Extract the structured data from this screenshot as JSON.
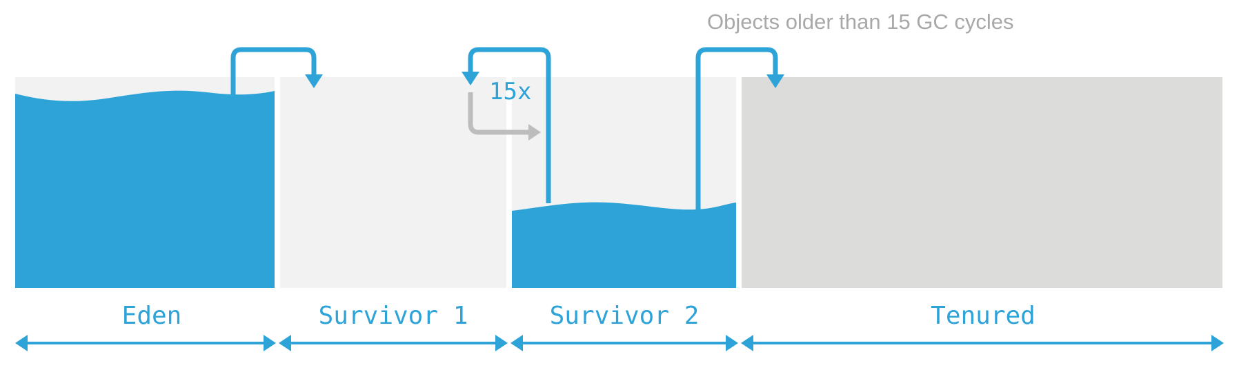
{
  "annotation": "Objects older than 15 GC cycles",
  "loop_count": "15x",
  "regions": [
    {
      "label": "Eden"
    },
    {
      "label": "Survivor 1"
    },
    {
      "label": "Survivor 2"
    },
    {
      "label": "Tenured"
    }
  ],
  "colors": {
    "accent": "#2ea3d8",
    "empty_region": "#f2f2f2",
    "tenured_region": "#dcdcda",
    "loop_arrow": "#bdbdbd",
    "annotation_text": "#a8a8a8"
  }
}
